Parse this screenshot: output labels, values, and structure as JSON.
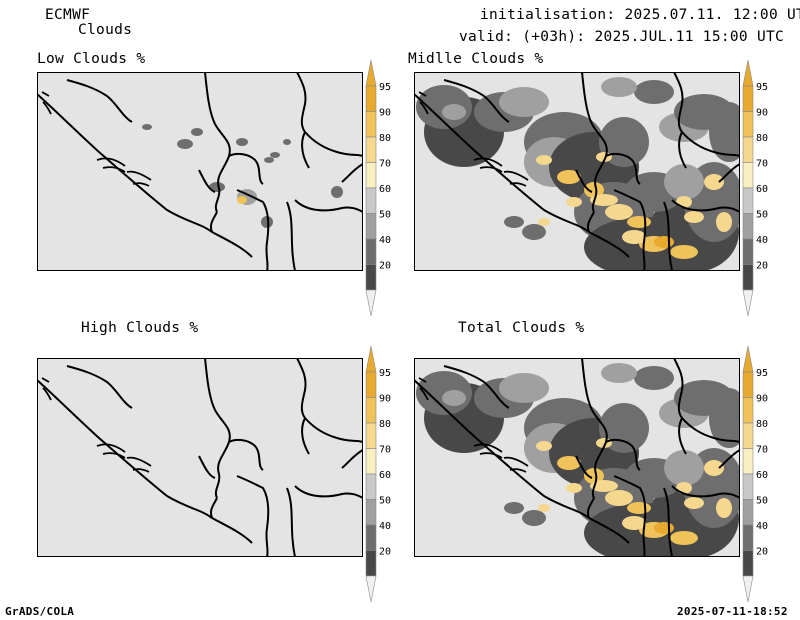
{
  "header": {
    "model": "ECMWF",
    "product": "Clouds",
    "initialisation": "initialisation: 2025.07.11. 12:00 UTC",
    "valid": "valid: (+03h): 2025.JUL.11 15:00 UTC"
  },
  "panels": [
    {
      "title": "Low Clouds %"
    },
    {
      "title": "Midlle Clouds %"
    },
    {
      "title": "High Clouds %"
    },
    {
      "title": "Total Clouds %"
    }
  ],
  "colorbar": {
    "labels": [
      "95",
      "90",
      "80",
      "70",
      "60",
      "50",
      "40",
      "20"
    ],
    "colors": [
      "#e8aa2e",
      "#f0c25a",
      "#f5d78e",
      "#f8f0c0",
      "#c8c8c8",
      "#a0a0a0",
      "#6e6e6e",
      "#484848"
    ],
    "low_triangle_color": "#f0f0f0",
    "high_triangle_color": "#e8aa2e"
  },
  "map_style": {
    "background": "#e4e4e4",
    "border_color": "#000000"
  },
  "footer": {
    "left": "GrADS/COLA",
    "right": "2025-07-11-18:52"
  }
}
